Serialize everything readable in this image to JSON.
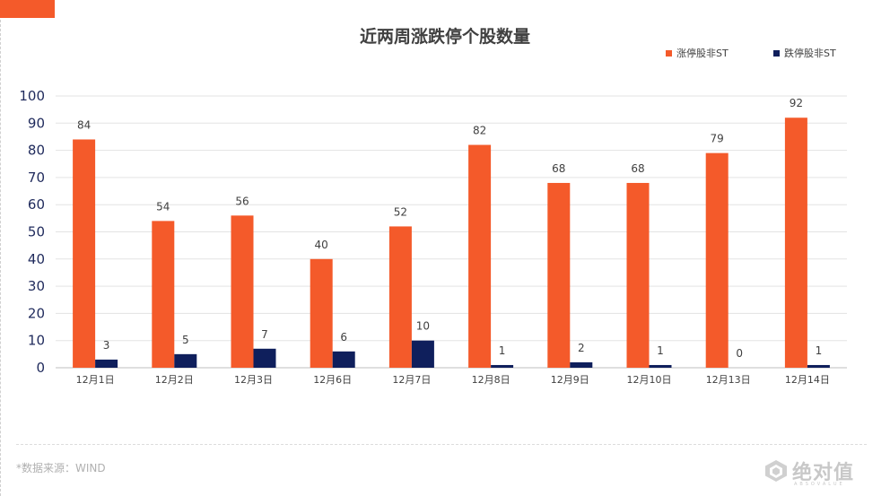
{
  "page": {
    "source_note": "*数据来源：WIND",
    "brand_name": "绝对值",
    "brand_sub": "ABSOVALUE"
  },
  "chart_data": {
    "type": "bar",
    "title": "近两周涨跌停个股数量",
    "categories": [
      "12月1日",
      "12月2日",
      "12月3日",
      "12月6日",
      "12月7日",
      "12月8日",
      "12月9日",
      "12月10日",
      "12月13日",
      "12月14日"
    ],
    "series": [
      {
        "name": "涨停股非ST",
        "color": "#f45a2a",
        "values": [
          84,
          54,
          56,
          40,
          52,
          82,
          68,
          68,
          79,
          92
        ]
      },
      {
        "name": "跌停股非ST",
        "color": "#0f1f5c",
        "values": [
          3,
          5,
          7,
          6,
          10,
          1,
          2,
          1,
          0,
          1
        ]
      }
    ],
    "ylim": [
      0,
      100
    ],
    "yticks": [
      0,
      10,
      20,
      30,
      40,
      50,
      60,
      70,
      80,
      90,
      100
    ],
    "grid": true,
    "legend": "top-right"
  }
}
